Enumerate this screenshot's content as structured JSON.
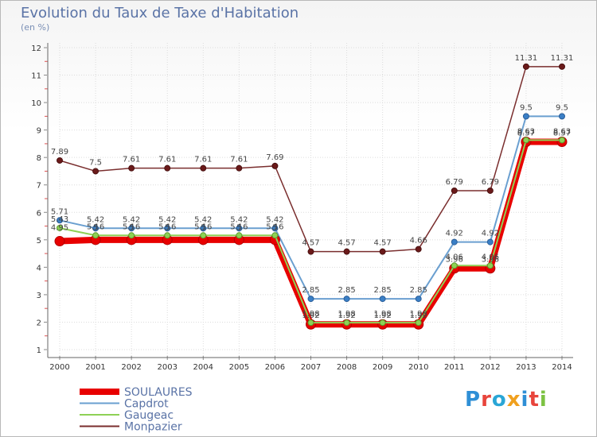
{
  "title": "Evolution du Taux de Taxe d'Habitation",
  "unit": "(en %)",
  "logo": {
    "text": "Proxiti",
    "colors": [
      "#2f8fd6",
      "#e8453c",
      "#2aa6d6",
      "#f0a01e",
      "#2f8fd6",
      "#e8453c",
      "#7cc242"
    ]
  },
  "chart_data": {
    "type": "line",
    "title": "Evolution du Taux de Taxe d'Habitation",
    "ylabel": "(en %)",
    "xlabel": "",
    "ylim": [
      1,
      12
    ],
    "yticks": [
      "1",
      "2",
      "3",
      "4",
      "5",
      "6",
      "7",
      "8",
      "9",
      "10",
      "11",
      "12"
    ],
    "x": [
      "2000",
      "2001",
      "2002",
      "2003",
      "2004",
      "2005",
      "2006",
      "2007",
      "2008",
      "2009",
      "2010",
      "2011",
      "2012",
      "2013",
      "2014"
    ],
    "legend_position": "bottom-left",
    "series": [
      {
        "name": "SOULAURES",
        "color": "#e80000",
        "values": [
          4.95,
          5,
          5,
          5,
          5,
          5,
          5,
          1.92,
          1.92,
          1.92,
          1.92,
          3.96,
          3.96,
          8.57,
          8.57
        ],
        "labels": [
          "",
          "",
          "",
          "",
          "",
          "",
          "",
          "1.92",
          "1.92",
          "1.92",
          "1.92",
          "3.96",
          "3.96",
          "8.57",
          "8.57"
        ]
      },
      {
        "name": "Capdrot",
        "color": "#6a9fd0",
        "values": [
          5.71,
          5.42,
          5.42,
          5.42,
          5.42,
          5.42,
          5.42,
          2.85,
          2.85,
          2.85,
          2.85,
          4.92,
          4.92,
          9.5,
          9.5
        ],
        "labels": [
          "5.71",
          "5.42",
          "5.42",
          "5.42",
          "5.42",
          "5.42",
          "5.42",
          "2.85",
          "2.85",
          "2.85",
          "2.85",
          "4.92",
          "4.92",
          "9.5",
          "9.5"
        ]
      },
      {
        "name": "Gaugeac",
        "color": "#8ed155",
        "values": [
          5.43,
          5.16,
          5.16,
          5.16,
          5.16,
          5.16,
          5.16,
          1.98,
          1.98,
          1.98,
          1.98,
          4.06,
          4.06,
          8.63,
          8.63
        ],
        "labels": [
          "5.43",
          "5.16",
          "5.16",
          "5.16",
          "5.16",
          "5.16",
          "5.16",
          "1.98",
          "1.98",
          "1.98",
          "1.98",
          "4.06",
          "4.06",
          "8.63",
          "8.63"
        ]
      },
      {
        "name": "Monpazier",
        "color": "#7a2e2e",
        "values": [
          7.89,
          7.5,
          7.61,
          7.61,
          7.61,
          7.61,
          7.69,
          4.57,
          4.57,
          4.57,
          4.66,
          6.79,
          6.79,
          11.31,
          11.31
        ],
        "labels": [
          "7.89",
          "7.5",
          "7.61",
          "7.61",
          "7.61",
          "7.61",
          "7.69",
          "4.57",
          "4.57",
          "4.57",
          "4.66",
          "6.79",
          "6.79",
          "11.31",
          "11.31"
        ]
      }
    ],
    "extra_labels": [
      {
        "x": "2000",
        "text": "4.95"
      },
      {
        "x": "2001",
        "text": "5"
      },
      {
        "x": "2002",
        "text": "5"
      },
      {
        "x": "2003",
        "text": "5"
      },
      {
        "x": "2004",
        "text": "5"
      },
      {
        "x": "2005",
        "text": "5"
      },
      {
        "x": "2006",
        "text": "5"
      }
    ]
  }
}
